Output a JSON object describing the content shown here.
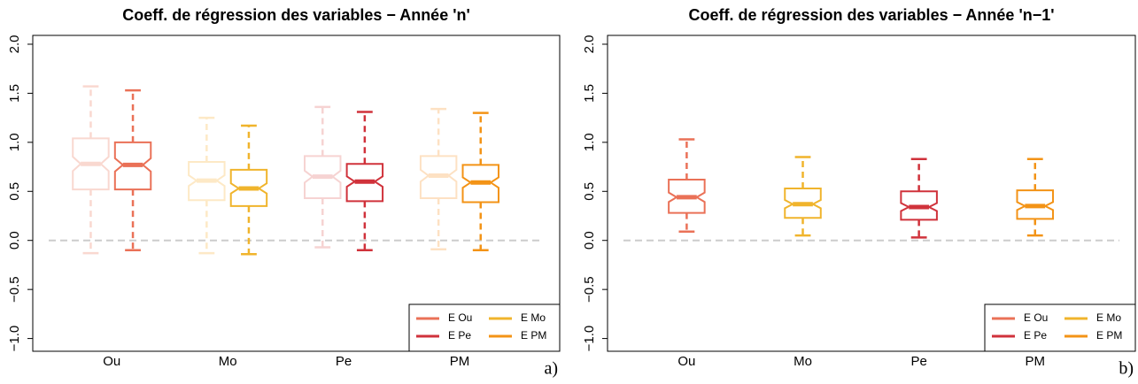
{
  "chart_data": [
    {
      "type": "boxplot",
      "title": "Coeff. de régression des variables − Année 'n'",
      "panel_label": "a)",
      "categories": [
        "Ou",
        "Mo",
        "Pe",
        "PM"
      ],
      "ylim": [
        -1.13,
        2.09
      ],
      "yticks": [
        {
          "value": -1.0,
          "label": "−1.0"
        },
        {
          "value": -0.5,
          "label": "−0.5"
        },
        {
          "value": 0.0,
          "label": "0.0"
        },
        {
          "value": 0.5,
          "label": "0.5"
        },
        {
          "value": 1.0,
          "label": "1.0"
        },
        {
          "value": 1.5,
          "label": "1.5"
        },
        {
          "value": 2.0,
          "label": "2.0"
        }
      ],
      "hline": 0,
      "hline_color": "#cccccc",
      "legend": "bottom-right",
      "background_series": [
        {
          "color": "#f9d8d0",
          "values": [
            {
              "whislo": -0.13,
              "q1": 0.52,
              "med": 0.78,
              "q3": 1.04,
              "whishi": 1.57
            },
            null,
            null,
            null
          ]
        },
        {
          "color": "#fde9c6",
          "values": [
            null,
            {
              "whislo": -0.13,
              "q1": 0.41,
              "med": 0.61,
              "q3": 0.8,
              "whishi": 1.25
            },
            null,
            null
          ]
        },
        {
          "color": "#f6d3d2",
          "values": [
            null,
            null,
            {
              "whislo": -0.07,
              "q1": 0.43,
              "med": 0.65,
              "q3": 0.86,
              "whishi": 1.36
            },
            null
          ]
        },
        {
          "color": "#fde1c3",
          "values": [
            null,
            null,
            null,
            {
              "whislo": -0.09,
              "q1": 0.43,
              "med": 0.66,
              "q3": 0.86,
              "whishi": 1.34
            }
          ]
        }
      ],
      "series": [
        {
          "name": "E Ou",
          "color": "#ea7157",
          "values": [
            {
              "whislo": -0.1,
              "q1": 0.52,
              "med": 0.77,
              "q3": 1.0,
              "whishi": 1.53
            },
            null,
            null,
            null
          ]
        },
        {
          "name": "E Pe",
          "color": "#d0323b",
          "values": [
            null,
            null,
            {
              "whislo": -0.1,
              "q1": 0.4,
              "med": 0.6,
              "q3": 0.78,
              "whishi": 1.31
            },
            null
          ]
        },
        {
          "name": "E Mo",
          "color": "#f0b42c",
          "values": [
            null,
            {
              "whislo": -0.14,
              "q1": 0.35,
              "med": 0.53,
              "q3": 0.72,
              "whishi": 1.17
            },
            null,
            null
          ]
        },
        {
          "name": "E PM",
          "color": "#f39316",
          "values": [
            null,
            null,
            null,
            {
              "whislo": -0.1,
              "q1": 0.39,
              "med": 0.59,
              "q3": 0.77,
              "whishi": 1.3
            }
          ]
        }
      ]
    },
    {
      "type": "boxplot",
      "title": "Coeff. de régression des variables − Année 'n−1'",
      "panel_label": "b)",
      "categories": [
        "Ou",
        "Mo",
        "Pe",
        "PM"
      ],
      "ylim": [
        -1.13,
        2.09
      ],
      "yticks": [
        {
          "value": -1.0,
          "label": "−1.0"
        },
        {
          "value": -0.5,
          "label": "−0.5"
        },
        {
          "value": 0.0,
          "label": "0.0"
        },
        {
          "value": 0.5,
          "label": "0.5"
        },
        {
          "value": 1.0,
          "label": "1.0"
        },
        {
          "value": 1.5,
          "label": "1.5"
        },
        {
          "value": 2.0,
          "label": "2.0"
        }
      ],
      "hline": 0,
      "hline_color": "#cccccc",
      "legend": "bottom-right",
      "series": [
        {
          "name": "E Ou",
          "color": "#ea7157",
          "values": [
            {
              "whislo": 0.09,
              "q1": 0.28,
              "med": 0.44,
              "q3": 0.62,
              "whishi": 1.03
            },
            null,
            null,
            null
          ]
        },
        {
          "name": "E Pe",
          "color": "#d0323b",
          "values": [
            null,
            null,
            {
              "whislo": 0.03,
              "q1": 0.21,
              "med": 0.34,
              "q3": 0.5,
              "whishi": 0.83
            },
            null
          ]
        },
        {
          "name": "E Mo",
          "color": "#f0b42c",
          "values": [
            null,
            {
              "whislo": 0.05,
              "q1": 0.23,
              "med": 0.37,
              "q3": 0.53,
              "whishi": 0.85
            },
            null,
            null
          ]
        },
        {
          "name": "E PM",
          "color": "#f39316",
          "values": [
            null,
            null,
            null,
            {
              "whislo": 0.05,
              "q1": 0.22,
              "med": 0.35,
              "q3": 0.51,
              "whishi": 0.83
            }
          ]
        }
      ]
    }
  ]
}
